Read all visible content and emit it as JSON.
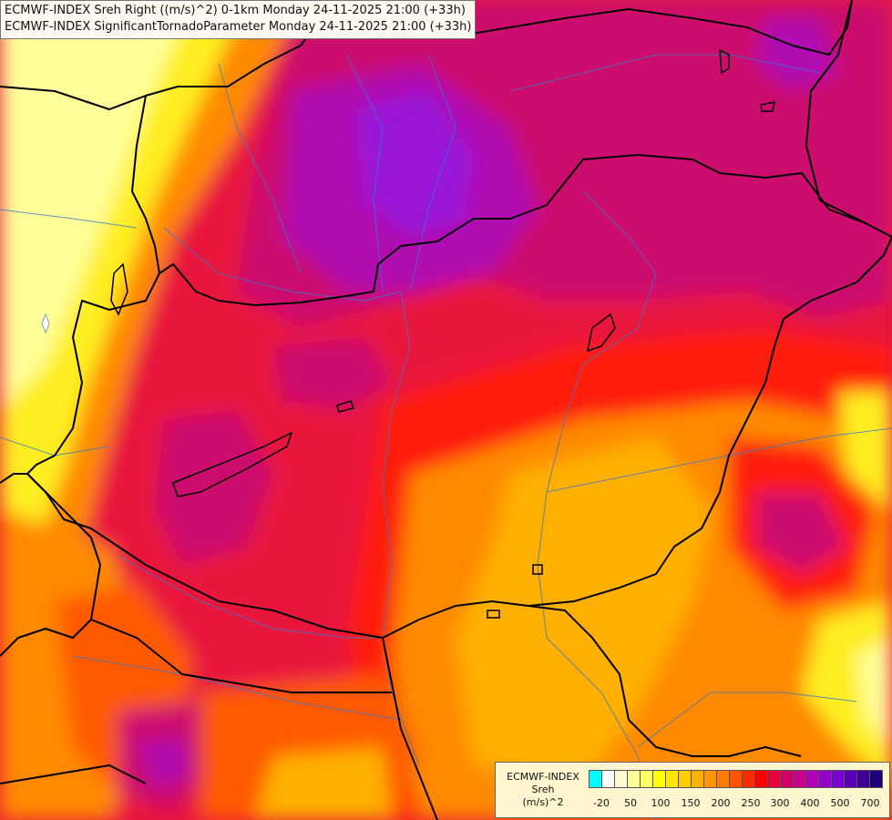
{
  "titles": {
    "line1": "ECMWF-INDEX Sreh Right ((m/s)^2) 0-1km Monday 24-11-2025 21:00 (+33h)",
    "line2": "ECMWF-INDEX SignificantTornadoParameter Monday 24-11-2025 21:00 (+33h)"
  },
  "legend": {
    "title_line1": "ECMWF-INDEX",
    "title_line2": "Sreh",
    "title_line3": "(m/s)^2",
    "colors": [
      "#00ffff",
      "#ffffff",
      "#fffbd0",
      "#ffff9a",
      "#ffff66",
      "#ffff00",
      "#ffe600",
      "#ffcc00",
      "#ffb000",
      "#ff9500",
      "#ff7a00",
      "#ff5500",
      "#ff2a00",
      "#ff0000",
      "#e8003c",
      "#d0006a",
      "#c8008c",
      "#b400b4",
      "#9600c8",
      "#7800d2",
      "#5a00b4",
      "#3c0096",
      "#1e0078"
    ],
    "ticks": [
      "-20",
      "50",
      "100",
      "150",
      "200",
      "250",
      "300",
      "400",
      "500",
      "700"
    ]
  },
  "palette": {
    "yellow_pale": "#ffff99",
    "yellow": "#ffee22",
    "orange_light": "#ffb000",
    "orange": "#ff8a00",
    "orange_red": "#ff5a00",
    "red": "#ff1a0a",
    "crimson": "#e8163c",
    "magenta": "#cc0a6e",
    "purple": "#b010b0",
    "violet": "#9a18d8"
  }
}
